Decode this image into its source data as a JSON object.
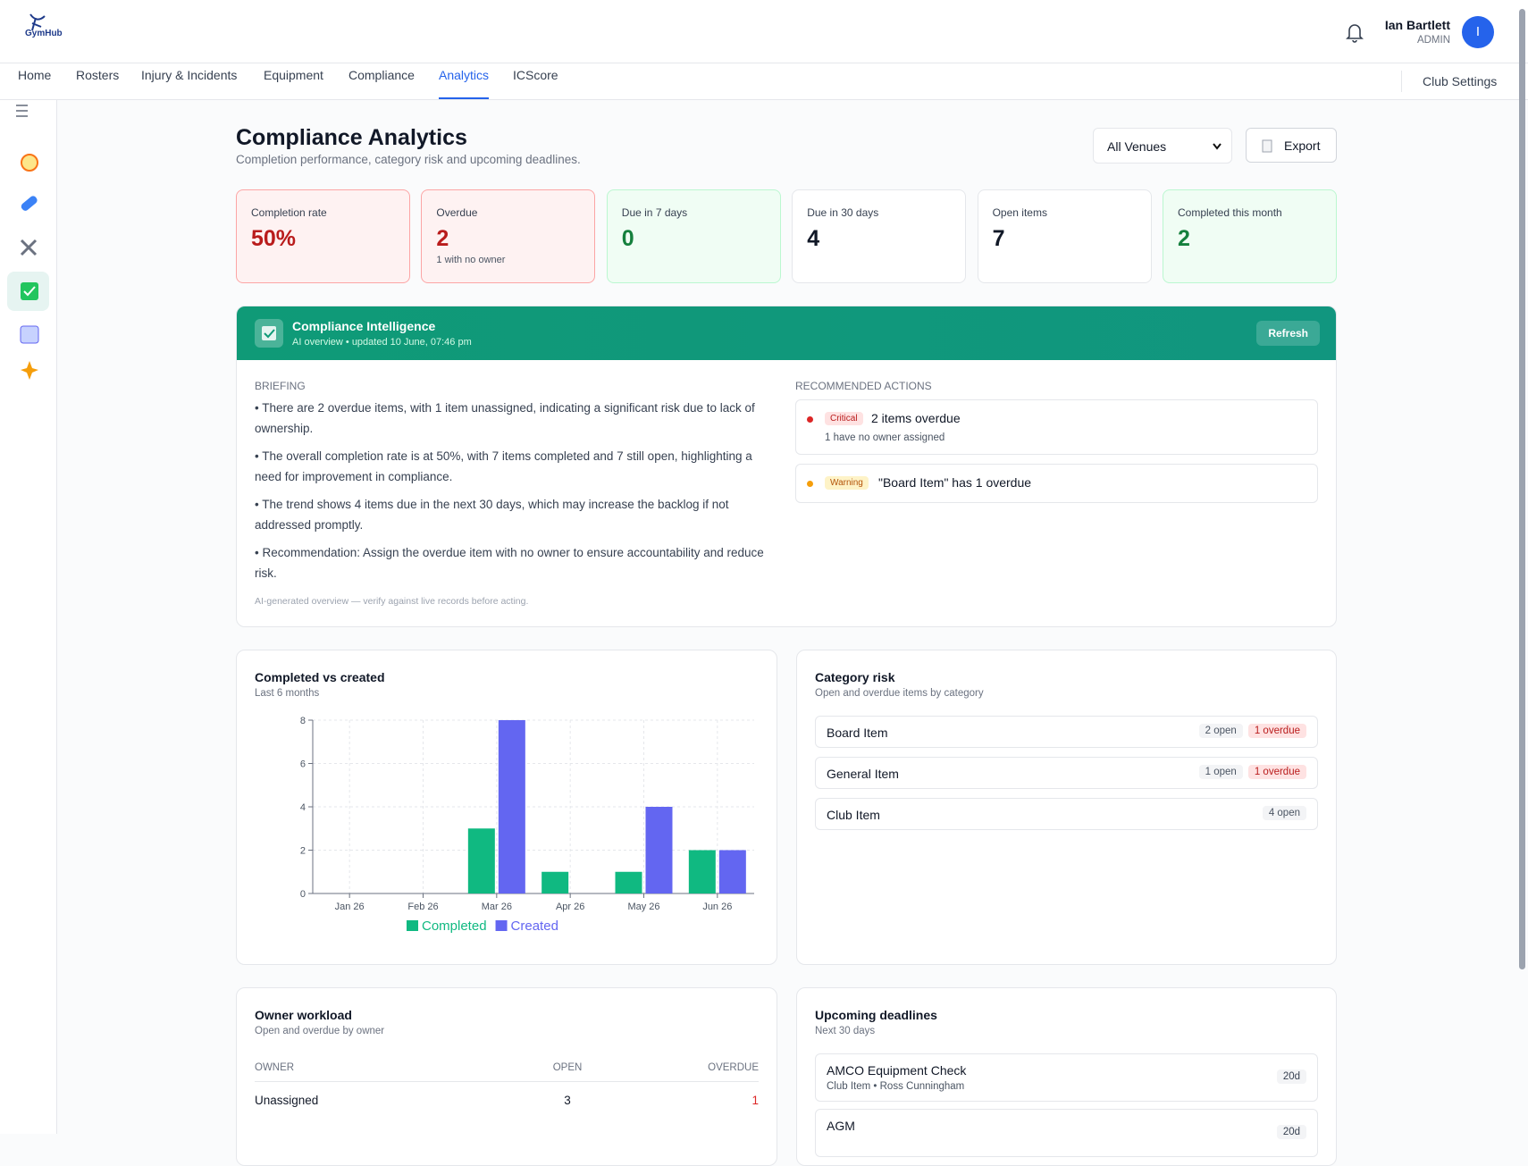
{
  "header": {
    "logo": "GymHub",
    "user_name": "Ian Bartlett",
    "user_role": "ADMIN",
    "avatar": "I"
  },
  "nav": [
    {
      "label": "Home",
      "active": false
    },
    {
      "label": "Rosters",
      "active": false
    },
    {
      "label": "Injury & Incidents",
      "active": false
    },
    {
      "label": "Equipment",
      "active": false
    },
    {
      "label": "Compliance",
      "active": false
    },
    {
      "label": "Analytics",
      "active": true
    },
    {
      "label": "ICScore",
      "active": false
    }
  ],
  "club_settings": "Club Settings",
  "page": {
    "title": "Compliance Analytics",
    "subtitle": "Completion performance, category risk and upcoming deadlines.",
    "venue_select": "All Venues",
    "export": "Export"
  },
  "kpis": [
    {
      "label": "Completion rate",
      "value": "50%",
      "tone": "red"
    },
    {
      "label": "Overdue",
      "value": "2",
      "note": "1 with no owner",
      "tone": "red"
    },
    {
      "label": "Due in 7 days",
      "value": "0",
      "tone": "green"
    },
    {
      "label": "Due in 30 days",
      "value": "4",
      "tone": "neutral"
    },
    {
      "label": "Open items",
      "value": "7",
      "tone": "neutral"
    },
    {
      "label": "Completed this month",
      "value": "2",
      "tone": "green"
    }
  ],
  "intelligence": {
    "title": "Compliance Intelligence",
    "subtitle": "AI overview • updated 10 June, 07:46 pm",
    "refresh": "Refresh",
    "briefing_heading": "BRIEFING",
    "briefing": [
      "• There are 2 overdue items, with 1 item unassigned, indicating a significant risk due to lack of ownership.",
      "• The overall completion rate is at 50%, with 7 items completed and 7 still open, highlighting a need for improvement in compliance.",
      "• The trend shows 4 items due in the next 30 days, which may increase the backlog if not addressed promptly.",
      "• Recommendation: Assign the overdue item with no owner to ensure accountability and reduce risk."
    ],
    "disclaimer": "AI-generated overview — verify against live records before acting.",
    "actions_heading": "RECOMMENDED ACTIONS",
    "actions": [
      {
        "badge": "Critical",
        "title": "2 items overdue",
        "note": "1 have no owner assigned",
        "tone": "red"
      },
      {
        "badge": "Warning",
        "title": "\"Board Item\" has 1 overdue",
        "tone": "amber"
      }
    ]
  },
  "chart_data": {
    "type": "bar",
    "title": "Completed vs created",
    "subtitle": "Last 6 months",
    "categories": [
      "Jan 26",
      "Feb 26",
      "Mar 26",
      "Apr 26",
      "May 26",
      "Jun 26"
    ],
    "series": [
      {
        "name": "Completed",
        "color": "#10b981",
        "values": [
          0,
          0,
          3,
          1,
          1,
          2
        ]
      },
      {
        "name": "Created",
        "color": "#6366f1",
        "values": [
          0,
          0,
          8,
          0,
          4,
          2
        ]
      }
    ],
    "ylim": [
      0,
      8
    ],
    "yticks": [
      0,
      2,
      4,
      6,
      8
    ],
    "grid": true
  },
  "category_risk": {
    "title": "Category risk",
    "subtitle": "Open and overdue items by category",
    "rows": [
      {
        "name": "Board Item",
        "open": "2 open",
        "overdue": "1 overdue"
      },
      {
        "name": "General Item",
        "open": "1 open",
        "overdue": "1 overdue"
      },
      {
        "name": "Club Item",
        "open": "4 open"
      }
    ]
  },
  "owner_workload": {
    "title": "Owner workload",
    "subtitle": "Open and overdue by owner",
    "columns": [
      "OWNER",
      "OPEN",
      "OVERDUE"
    ],
    "rows": [
      [
        "Unassigned",
        "3",
        "1"
      ]
    ]
  },
  "upcoming": {
    "title": "Upcoming deadlines",
    "subtitle": "Next 30 days",
    "items": [
      {
        "name": "AMCO Equipment Check",
        "meta": "Club Item • Ross Cunningham",
        "days": "20d"
      },
      {
        "name": "AGM",
        "days": "20d"
      }
    ]
  }
}
